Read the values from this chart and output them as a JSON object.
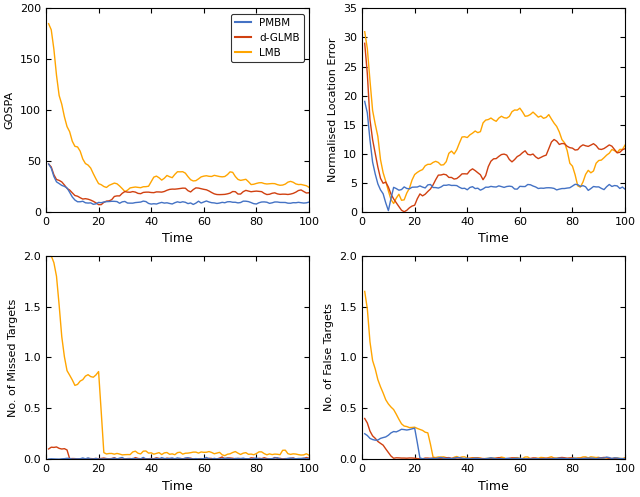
{
  "colors": {
    "PMBM": "#4472C4",
    "d-GLMB": "#D04010",
    "LMB": "#FFA500"
  },
  "legend_labels": [
    "PMBM",
    "d-GLMB",
    "LMB"
  ],
  "ylabels": [
    "GOSPA",
    "Normalised Location Error",
    "No. of Missed Targets",
    "No. of False Targets"
  ],
  "xlabel": "Time",
  "ylims": [
    [
      0,
      200
    ],
    [
      0,
      35
    ],
    [
      0,
      2
    ],
    [
      0,
      2
    ]
  ],
  "xlim": [
    1,
    100
  ],
  "yticks": {
    "0": [
      0,
      50,
      100,
      150,
      200
    ],
    "1": [
      0,
      5,
      10,
      15,
      20,
      25,
      30,
      35
    ],
    "2": [
      0,
      0.5,
      1.0,
      1.5,
      2.0
    ],
    "3": [
      0,
      0.5,
      1.0,
      1.5,
      2.0
    ]
  },
  "xticks": [
    0,
    20,
    40,
    60,
    80,
    100
  ],
  "figsize": [
    6.4,
    4.97
  ],
  "dpi": 100,
  "background_color": "#ffffff",
  "line_width": 1.0
}
